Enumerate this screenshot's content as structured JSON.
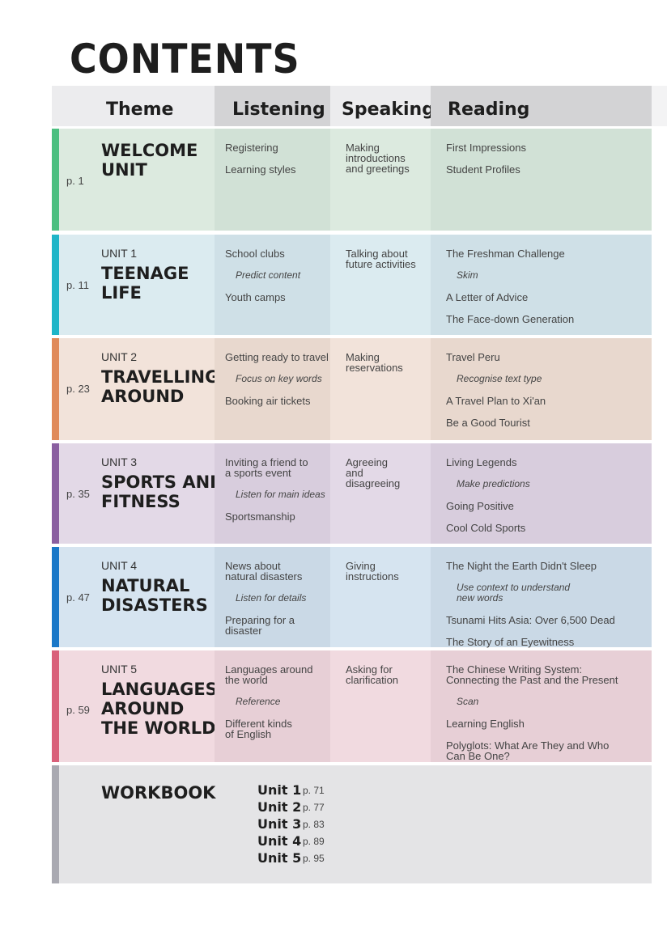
{
  "title": "CONTENTS",
  "headers": {
    "theme": "Theme",
    "listening": "Listening",
    "speaking": "Speaking",
    "reading": "Reading"
  },
  "rows": [
    {
      "page": "p. 1",
      "unit": "",
      "title": "WELCOME\nUNIT",
      "accent": "#4cbf80",
      "light": "#dceadf",
      "dark": "#d1e1d6",
      "listening": [
        {
          "text": "Registering"
        },
        {
          "text": "Learning styles"
        }
      ],
      "speaking": [
        {
          "text": "Making\nintroductions\nand greetings"
        }
      ],
      "reading": [
        {
          "text": "First Impressions"
        },
        {
          "text": "Student Profiles"
        }
      ]
    },
    {
      "page": "p. 11",
      "unit": "UNIT 1",
      "title": "TEENAGE\nLIFE",
      "accent": "#1fb5c8",
      "light": "#dbebf0",
      "dark": "#cfe0e7",
      "listening": [
        {
          "text": "School clubs"
        },
        {
          "text": "Predict content",
          "skill": true
        },
        {
          "text": "Youth camps"
        }
      ],
      "speaking": [
        {
          "text": "Talking about\nfuture activities"
        }
      ],
      "reading": [
        {
          "text": "The Freshman Challenge"
        },
        {
          "text": "Skim",
          "skill": true
        },
        {
          "text": "A Letter of Advice"
        },
        {
          "text": "The Face-down Generation"
        }
      ]
    },
    {
      "page": "p. 23",
      "unit": "UNIT 2",
      "title": "TRAVELLING\nAROUND",
      "accent": "#e08a5a",
      "light": "#f2e3da",
      "dark": "#e8d8ce",
      "listening": [
        {
          "text": "Getting ready to travel"
        },
        {
          "text": "Focus on key words",
          "skill": true
        },
        {
          "text": "Booking air tickets"
        }
      ],
      "speaking": [
        {
          "text": "Making\nreservations"
        }
      ],
      "reading": [
        {
          "text": "Travel Peru"
        },
        {
          "text": "Recognise text type",
          "skill": true
        },
        {
          "text": "A Travel Plan to Xi'an"
        },
        {
          "text": "Be a Good Tourist"
        }
      ]
    },
    {
      "page": "p. 35",
      "unit": "UNIT 3",
      "title": "SPORTS AND\nFITNESS",
      "accent": "#8a5fa0",
      "light": "#e3d9e7",
      "dark": "#d8cddd",
      "listening": [
        {
          "text": "Inviting a friend to\na sports event"
        },
        {
          "text": "Listen for main ideas",
          "skill": true
        },
        {
          "text": "Sportsmanship"
        }
      ],
      "speaking": [
        {
          "text": "Agreeing\nand\ndisagreeing"
        }
      ],
      "reading": [
        {
          "text": "Living Legends"
        },
        {
          "text": "Make predictions",
          "skill": true
        },
        {
          "text": "Going Positive"
        },
        {
          "text": "Cool Cold Sports"
        }
      ]
    },
    {
      "page": "p. 47",
      "unit": "UNIT 4",
      "title": "NATURAL\nDISASTERS",
      "accent": "#1a78c8",
      "light": "#d6e4f0",
      "dark": "#cad9e6",
      "listening": [
        {
          "text": "News about\nnatural disasters"
        },
        {
          "text": "Listen for details",
          "skill": true
        },
        {
          "text": "Preparing for a\ndisaster"
        }
      ],
      "speaking": [
        {
          "text": "Giving\ninstructions"
        }
      ],
      "reading": [
        {
          "text": "The Night the Earth Didn't Sleep"
        },
        {
          "text": "Use context to understand\nnew words",
          "skill": true
        },
        {
          "text": "Tsunami Hits Asia: Over 6,500 Dead"
        },
        {
          "text": "The Story of an Eyewitness"
        }
      ]
    },
    {
      "page": "p. 59",
      "unit": "UNIT 5",
      "title": "LANGUAGES\nAROUND\nTHE WORLD",
      "accent": "#d9607a",
      "light": "#f1dae0",
      "dark": "#e7cfd6",
      "listening": [
        {
          "text": "Languages around\nthe world"
        },
        {
          "text": "Reference",
          "skill": true
        },
        {
          "text": "Different kinds\nof English"
        }
      ],
      "speaking": [
        {
          "text": "Asking for\nclarification"
        }
      ],
      "reading": [
        {
          "text": "The Chinese Writing System:\nConnecting the Past and the Present"
        },
        {
          "text": "Scan",
          "skill": true
        },
        {
          "text": "Learning English"
        },
        {
          "text": "Polyglots: What Are They and Who\nCan Be One?"
        }
      ]
    }
  ],
  "workbook": {
    "title": "WORKBOOK",
    "accent": "#a9a9b1",
    "bg": "#e4e4e6",
    "units": [
      {
        "unit": "Unit 1",
        "page": "p. 71"
      },
      {
        "unit": "Unit 2",
        "page": "p. 77"
      },
      {
        "unit": "Unit 3",
        "page": "p. 83"
      },
      {
        "unit": "Unit 4",
        "page": "p. 89"
      },
      {
        "unit": "Unit 5",
        "page": "p. 95"
      }
    ]
  }
}
